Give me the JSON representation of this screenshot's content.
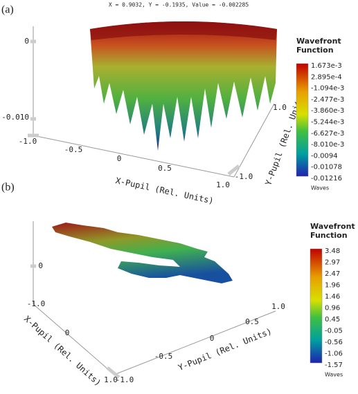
{
  "header": {
    "readout": "X = 0.9032, Y = -0.1935, Value = -0.002285"
  },
  "panels": [
    {
      "label": "(a)",
      "colorbar": {
        "title": [
          "Wavefront",
          "Function"
        ],
        "ticks": [
          "1.673e-3",
          "2.895e-4",
          "-1.094e-3",
          "-2.477e-3",
          "-3.860e-3",
          "-5.244e-3",
          "-6.627e-3",
          "-8.010e-3",
          "-0.0094",
          "-0.01078",
          "-0.01216"
        ],
        "unit": "Waves"
      },
      "axes": {
        "z_ticks": [
          "0",
          "-0.010"
        ],
        "x_ticks": [
          "-1.0",
          "-0.5",
          "0",
          "0.5",
          "1.0"
        ],
        "x_label": "X-Pupil (Rel. Units)",
        "y_ticks": [
          "-1.0",
          "1.0"
        ],
        "y_label": "Y-Pupil (Rel. Units)"
      }
    },
    {
      "label": "(b)",
      "colorbar": {
        "title": [
          "Wavefront",
          "Function"
        ],
        "ticks": [
          "3.48",
          "2.97",
          "2.47",
          "1.96",
          "1.46",
          "0.96",
          "0.45",
          "-0.05",
          "-0.56",
          "-1.06",
          "-1.57"
        ],
        "unit": "Waves"
      },
      "axes": {
        "z_ticks": [
          "0"
        ],
        "x_ticks": [
          "-1.0",
          "0",
          "1.0"
        ],
        "x_label": "X-Pupil (Rel. Units)",
        "y_ticks": [
          "-1.0",
          "-0.5",
          "0",
          "0.5",
          "1.0"
        ],
        "y_label": "Y-Pupil (Rel. Units)"
      }
    }
  ]
}
